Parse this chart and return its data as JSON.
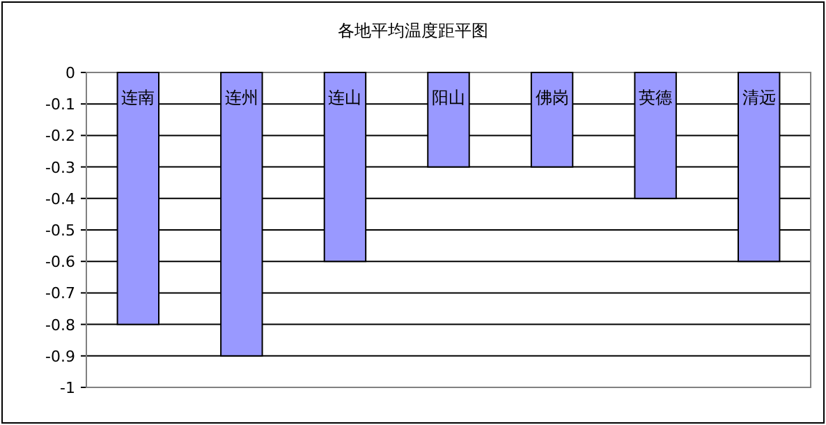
{
  "chart_data": {
    "type": "bar",
    "title": "各地平均温度距平图",
    "categories": [
      "连南",
      "连州",
      "连山",
      "阳山",
      "佛岗",
      "英德",
      "清远"
    ],
    "values": [
      -0.8,
      -0.9,
      -0.6,
      -0.3,
      -0.3,
      -0.4,
      -0.6
    ],
    "color": "#9999ff",
    "ylim": [
      -1,
      0
    ],
    "yticks": [
      0,
      -0.1,
      -0.2,
      -0.3,
      -0.4,
      -0.5,
      -0.6,
      -0.7,
      -0.8,
      -0.9,
      -1
    ],
    "grid": "y"
  }
}
